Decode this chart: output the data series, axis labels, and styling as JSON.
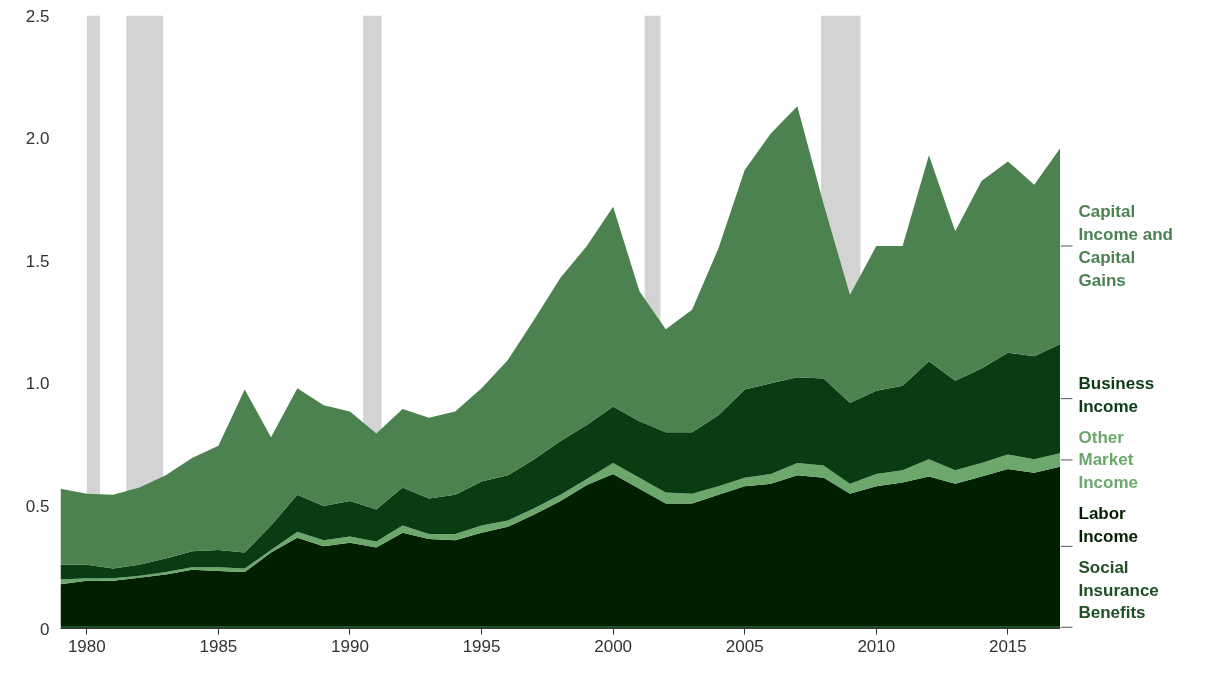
{
  "chart_data": {
    "type": "area",
    "stacked": true,
    "x": [
      1979,
      1980,
      1981,
      1982,
      1983,
      1984,
      1985,
      1986,
      1987,
      1988,
      1989,
      1990,
      1991,
      1992,
      1993,
      1994,
      1995,
      1996,
      1997,
      1998,
      1999,
      2000,
      2001,
      2002,
      2003,
      2004,
      2005,
      2006,
      2007,
      2008,
      2009,
      2010,
      2011,
      2012,
      2013,
      2014,
      2015,
      2016,
      2017
    ],
    "series": [
      {
        "name": "Social\nInsurance\nBenefits",
        "color": "#1f4f24",
        "values": [
          0.01,
          0.01,
          0.01,
          0.01,
          0.01,
          0.01,
          0.01,
          0.01,
          0.01,
          0.01,
          0.01,
          0.01,
          0.01,
          0.01,
          0.01,
          0.01,
          0.01,
          0.01,
          0.01,
          0.01,
          0.01,
          0.01,
          0.01,
          0.01,
          0.01,
          0.01,
          0.01,
          0.01,
          0.01,
          0.01,
          0.01,
          0.01,
          0.01,
          0.01,
          0.01,
          0.01,
          0.01,
          0.01,
          0.01
        ]
      },
      {
        "name": "Labor\nIncome",
        "color": "#002000",
        "values": [
          0.17,
          0.185,
          0.185,
          0.197,
          0.21,
          0.23,
          0.225,
          0.22,
          0.3,
          0.36,
          0.325,
          0.34,
          0.32,
          0.38,
          0.355,
          0.35,
          0.38,
          0.405,
          0.455,
          0.51,
          0.575,
          0.62,
          0.56,
          0.5,
          0.5,
          0.535,
          0.57,
          0.58,
          0.615,
          0.605,
          0.54,
          0.57,
          0.585,
          0.61,
          0.58,
          0.61,
          0.64,
          0.625,
          0.65
        ]
      },
      {
        "name": "Other\nMarket\nIncome",
        "color": "#6ca86c",
        "values": [
          0.02,
          0.01,
          0.01,
          0.008,
          0.01,
          0.01,
          0.015,
          0.015,
          0.01,
          0.025,
          0.025,
          0.025,
          0.025,
          0.03,
          0.02,
          0.025,
          0.03,
          0.025,
          0.025,
          0.025,
          0.025,
          0.045,
          0.045,
          0.045,
          0.04,
          0.035,
          0.035,
          0.04,
          0.05,
          0.05,
          0.04,
          0.05,
          0.05,
          0.07,
          0.055,
          0.055,
          0.06,
          0.055,
          0.055
        ]
      },
      {
        "name": "Business\nIncome",
        "color": "#0a3c14",
        "values": [
          0.06,
          0.055,
          0.04,
          0.045,
          0.055,
          0.065,
          0.07,
          0.065,
          0.1,
          0.15,
          0.14,
          0.145,
          0.13,
          0.155,
          0.145,
          0.16,
          0.18,
          0.185,
          0.2,
          0.22,
          0.22,
          0.23,
          0.23,
          0.245,
          0.25,
          0.29,
          0.36,
          0.37,
          0.35,
          0.355,
          0.33,
          0.34,
          0.345,
          0.4,
          0.365,
          0.385,
          0.415,
          0.42,
          0.445
        ]
      },
      {
        "name": "Capital\nIncome and\nCapital\nGains",
        "color": "#4c8250",
        "values": [
          0.31,
          0.29,
          0.3,
          0.315,
          0.34,
          0.38,
          0.425,
          0.665,
          0.36,
          0.435,
          0.41,
          0.365,
          0.31,
          0.32,
          0.33,
          0.34,
          0.38,
          0.47,
          0.57,
          0.665,
          0.73,
          0.815,
          0.53,
          0.42,
          0.5,
          0.68,
          0.895,
          1.02,
          1.105,
          0.71,
          0.44,
          0.59,
          0.57,
          0.84,
          0.61,
          0.765,
          0.78,
          0.7,
          0.8
        ]
      }
    ],
    "xlim": [
      1979,
      2017
    ],
    "xticks": [
      1980,
      1985,
      1990,
      1995,
      2000,
      2005,
      2010,
      2015
    ],
    "ylim": [
      0,
      2.5
    ],
    "yticks": [
      {
        "value": 0,
        "label": "0"
      },
      0.5,
      {
        "value": 1,
        "label": "1.0"
      },
      1.5,
      {
        "value": 2,
        "label": "2.0"
      },
      2.5
    ],
    "bands": [
      {
        "axis": "x",
        "from": 1980.0,
        "to": 1980.5,
        "color": "#d3d3d3"
      },
      {
        "axis": "x",
        "from": 1981.5,
        "to": 1982.9,
        "color": "#d3d3d3"
      },
      {
        "axis": "x",
        "from": 1990.5,
        "to": 1991.2,
        "color": "#d3d3d3"
      },
      {
        "axis": "x",
        "from": 2001.2,
        "to": 2001.8,
        "color": "#d3d3d3"
      },
      {
        "axis": "x",
        "from": 2007.9,
        "to": 2009.4,
        "color": "#d3d3d3"
      }
    ],
    "grid": false
  }
}
